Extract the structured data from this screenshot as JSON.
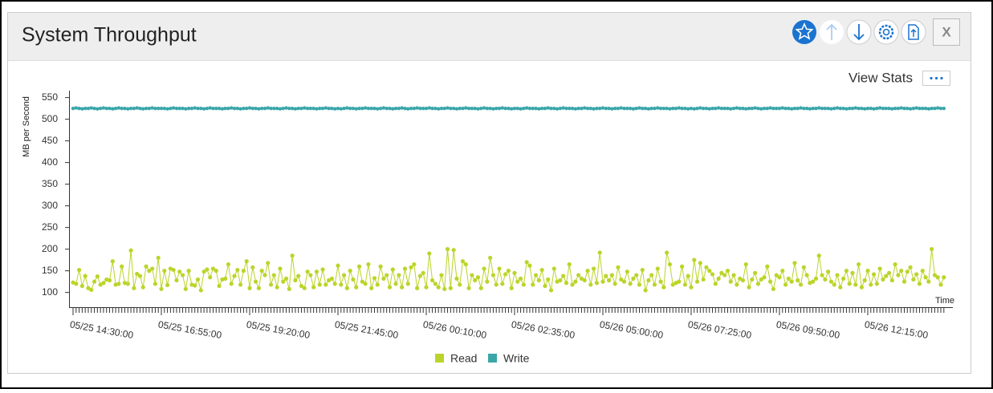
{
  "chart_data": {
    "type": "line",
    "title": "System Throughput",
    "y_label": "MB per Second",
    "x_label": "Time",
    "ylim": [
      66,
      566
    ],
    "yticks": [
      100,
      150,
      200,
      250,
      300,
      350,
      400,
      450,
      500,
      550
    ],
    "categories": [
      "05/25 14:30:00",
      null,
      null,
      null,
      null,
      null,
      null,
      null,
      null,
      null,
      null,
      null,
      null,
      null,
      null,
      null,
      null,
      null,
      null,
      null,
      null,
      null,
      null,
      null,
      null,
      null,
      null,
      null,
      null,
      "05/25 16:55:00",
      null,
      null,
      null,
      null,
      null,
      null,
      null,
      null,
      null,
      null,
      null,
      null,
      null,
      null,
      null,
      null,
      null,
      null,
      null,
      null,
      null,
      null,
      null,
      null,
      null,
      null,
      null,
      null,
      "05/25 19:20:00",
      null,
      null,
      null,
      null,
      null,
      null,
      null,
      null,
      null,
      null,
      null,
      null,
      null,
      null,
      null,
      null,
      null,
      null,
      null,
      null,
      null,
      null,
      null,
      null,
      null,
      null,
      null,
      null,
      "05/25 21:45:00",
      null,
      null,
      null,
      null,
      null,
      null,
      null,
      null,
      null,
      null,
      null,
      null,
      null,
      null,
      null,
      null,
      null,
      null,
      null,
      null,
      null,
      null,
      null,
      null,
      null,
      null,
      null,
      null,
      "05/26 00:10:00",
      null,
      null,
      null,
      null,
      null,
      null,
      null,
      null,
      null,
      null,
      null,
      null,
      null,
      null,
      null,
      null,
      null,
      null,
      null,
      null,
      null,
      null,
      null,
      null,
      null,
      null,
      null,
      null,
      "05/26 02:35:00",
      null,
      null,
      null,
      null,
      null,
      null,
      null,
      null,
      null,
      null,
      null,
      null,
      null,
      null,
      null,
      null,
      null,
      null,
      null,
      null,
      null,
      null,
      null,
      null,
      null,
      null,
      null,
      null,
      "05/26 05:00:00",
      null,
      null,
      null,
      null,
      null,
      null,
      null,
      null,
      null,
      null,
      null,
      null,
      null,
      null,
      null,
      null,
      null,
      null,
      null,
      null,
      null,
      null,
      null,
      null,
      null,
      null,
      null,
      null,
      "05/26 07:25:00",
      null,
      null,
      null,
      null,
      null,
      null,
      null,
      null,
      null,
      null,
      null,
      null,
      null,
      null,
      null,
      null,
      null,
      null,
      null,
      null,
      null,
      null,
      null,
      null,
      null,
      null,
      null,
      null,
      "05/26 09:50:00",
      null,
      null,
      null,
      null,
      null,
      null,
      null,
      null,
      null,
      null,
      null,
      null,
      null,
      null,
      null,
      null,
      null,
      null,
      null,
      null,
      null,
      null,
      null,
      null,
      null,
      null,
      null,
      null,
      "05/26 12:15:00",
      null,
      null,
      null,
      null,
      null,
      null,
      null,
      null,
      null,
      null,
      null,
      null,
      null,
      null,
      null,
      null,
      null,
      null,
      null,
      null,
      null,
      null,
      null,
      null,
      null
    ],
    "series": [
      {
        "name": "Read",
        "color": "#bcd42a",
        "values": [
          123,
          120,
          152,
          115,
          138,
          110,
          106,
          125,
          137,
          118,
          122,
          130,
          128,
          172,
          118,
          120,
          160,
          122,
          120,
          197,
          110,
          143,
          138,
          112,
          160,
          150,
          155,
          120,
          180,
          108,
          150,
          117,
          155,
          152,
          128,
          148,
          140,
          108,
          150,
          118,
          116,
          130,
          105,
          148,
          153,
          135,
          155,
          150,
          115,
          130,
          132,
          165,
          120,
          138,
          152,
          118,
          150,
          172,
          110,
          158,
          125,
          110,
          150,
          140,
          168,
          118,
          140,
          112,
          155,
          125,
          132,
          108,
          185,
          128,
          138,
          115,
          110,
          148,
          140,
          112,
          148,
          118,
          153,
          118,
          128,
          132,
          120,
          162,
          118,
          140,
          110,
          150,
          130,
          112,
          160,
          125,
          120,
          165,
          110,
          133,
          118,
          160,
          132,
          140,
          112,
          153,
          120,
          140,
          112,
          155,
          120,
          158,
          165,
          110,
          138,
          145,
          112,
          190,
          128,
          120,
          112,
          140,
          108,
          200,
          110,
          198,
          132,
          118,
          172,
          165,
          110,
          140,
          128,
          135,
          110,
          155,
          125,
          180,
          140,
          118,
          155,
          120,
          142,
          150,
          110,
          145,
          125,
          132,
          118,
          170,
          162,
          118,
          140,
          128,
          152,
          115,
          130,
          105,
          155,
          125,
          128,
          138,
          122,
          165,
          118,
          125,
          140,
          132,
          128,
          150,
          118,
          155,
          122,
          192,
          125,
          138,
          128,
          140,
          120,
          158,
          130,
          125,
          148,
          120,
          132,
          140,
          118,
          152,
          105,
          128,
          140,
          118,
          155,
          125,
          112,
          192,
          165,
          118,
          122,
          125,
          160,
          118,
          138,
          112,
          175,
          125,
          168,
          130,
          158,
          150,
          142,
          120,
          132,
          145,
          140,
          150,
          125,
          140,
          118,
          132,
          128,
          165,
          112,
          130,
          145,
          120,
          130,
          135,
          160,
          125,
          108,
          140,
          135,
          150,
          118,
          132,
          125,
          168,
          128,
          118,
          158,
          140,
          122,
          125,
          132,
          185,
          140,
          130,
          148,
          125,
          118,
          140,
          112,
          132,
          150,
          120,
          145,
          118,
          165,
          112,
          128,
          150,
          118,
          142,
          120,
          155,
          130,
          138,
          145,
          128,
          165,
          140,
          150,
          125,
          148,
          158,
          130,
          142,
          120,
          150,
          135,
          125,
          200,
          140,
          135,
          118,
          135
        ]
      },
      {
        "name": "Write",
        "color": "#3aa6aa",
        "values": [
          525,
          526,
          525,
          524,
          525,
          525,
          526,
          525,
          524,
          525,
          526,
          525,
          525,
          524,
          525,
          526,
          525,
          525,
          524,
          525,
          525,
          526,
          525,
          524,
          525,
          525,
          526,
          525,
          525,
          525,
          525,
          524,
          525,
          526,
          525,
          525,
          525,
          524,
          525,
          525,
          526,
          525,
          525,
          524,
          525,
          526,
          525,
          525,
          525,
          524,
          525,
          525,
          526,
          525,
          525,
          524,
          525,
          525,
          526,
          525,
          525,
          524,
          525,
          525,
          526,
          525,
          525,
          525,
          524,
          525,
          526,
          525,
          525,
          524,
          525,
          525,
          526,
          525,
          525,
          525,
          524,
          525,
          525,
          526,
          525,
          525,
          524,
          525,
          524,
          525,
          526,
          525,
          525,
          524,
          525,
          525,
          526,
          525,
          525,
          525,
          524,
          525,
          526,
          525,
          525,
          524,
          525,
          525,
          526,
          525,
          524,
          525,
          525,
          526,
          525,
          525,
          525,
          526,
          525,
          525,
          524,
          525,
          525,
          526,
          525,
          525,
          524,
          525,
          525,
          526,
          525,
          525,
          525,
          524,
          525,
          526,
          525,
          525,
          524,
          525,
          525,
          526,
          525,
          525,
          524,
          525,
          525,
          524,
          525,
          526,
          525,
          525,
          525,
          524,
          525,
          525,
          526,
          525,
          525,
          524,
          525,
          526,
          525,
          525,
          525,
          524,
          525,
          525,
          526,
          525,
          525,
          524,
          525,
          525,
          526,
          525,
          525,
          524,
          525,
          525,
          526,
          525,
          525,
          525,
          524,
          525,
          526,
          525,
          525,
          524,
          525,
          525,
          526,
          525,
          525,
          525,
          524,
          525,
          525,
          526,
          525,
          525,
          524,
          525,
          524,
          525,
          526,
          525,
          525,
          524,
          525,
          525,
          526,
          525,
          525,
          525,
          524,
          525,
          526,
          525,
          525,
          524,
          525,
          525,
          526,
          525,
          524,
          525,
          525,
          526,
          525,
          525,
          525,
          526,
          525,
          525,
          524,
          525,
          525,
          526,
          525,
          525,
          524,
          525,
          525,
          526,
          525,
          525,
          525,
          524,
          525,
          526,
          525,
          525,
          524,
          525,
          525,
          526,
          525,
          525,
          524,
          525,
          525,
          524,
          525,
          526,
          525,
          525,
          525,
          524,
          525,
          525,
          526,
          525,
          525,
          524,
          525,
          526,
          525,
          525,
          525,
          524,
          525,
          525,
          526,
          525,
          525
        ]
      }
    ],
    "legend": "bottom"
  },
  "toolbar": {
    "view_stats": "View Stats",
    "close": "X"
  }
}
